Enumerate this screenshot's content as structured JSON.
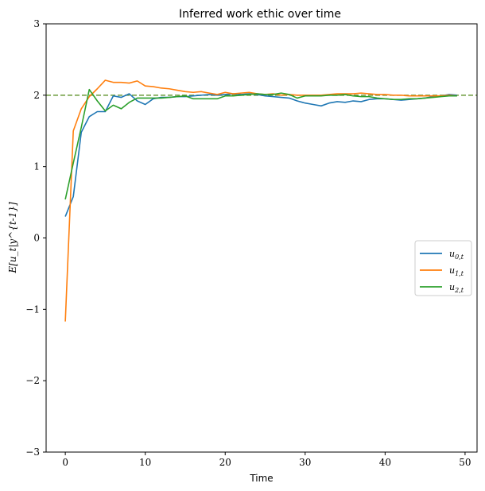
{
  "chart_data": {
    "type": "line",
    "title": "Inferred work ethic over time",
    "xlabel": "Time",
    "ylabel": "E[u_t|y^{t-1}]",
    "xlim": [
      -2.4,
      51.5
    ],
    "ylim": [
      -3,
      3
    ],
    "xticks": [
      0,
      10,
      20,
      30,
      40,
      50
    ],
    "yticks": [
      -3,
      -2,
      -1,
      0,
      1,
      2,
      3
    ],
    "ytick_labels": [
      "−3",
      "−2",
      "−1",
      "0",
      "1",
      "2",
      "3"
    ],
    "grid": false,
    "legend_position": "center-right",
    "reference_line": {
      "y": 2,
      "style": "dashed",
      "color": "#6a9a3a"
    },
    "x": [
      0,
      1,
      2,
      3,
      4,
      5,
      6,
      7,
      8,
      9,
      10,
      11,
      12,
      13,
      14,
      15,
      16,
      17,
      18,
      19,
      20,
      21,
      22,
      23,
      24,
      25,
      26,
      27,
      28,
      29,
      30,
      31,
      32,
      33,
      34,
      35,
      36,
      37,
      38,
      39,
      40,
      41,
      42,
      43,
      44,
      45,
      46,
      47,
      48,
      49
    ],
    "series": [
      {
        "name": "u_{0,t}",
        "legend_main": "u",
        "legend_sub": "0,t",
        "color": "#1f77b4",
        "values": [
          0.3,
          0.58,
          1.48,
          1.7,
          1.77,
          1.77,
          1.99,
          1.97,
          2.02,
          1.92,
          1.87,
          1.95,
          1.97,
          1.97,
          1.98,
          1.98,
          1.99,
          2.0,
          2.01,
          2.0,
          2.01,
          2.02,
          2.01,
          2.02,
          2.01,
          1.99,
          1.98,
          1.97,
          1.96,
          1.92,
          1.89,
          1.87,
          1.85,
          1.89,
          1.91,
          1.9,
          1.92,
          1.91,
          1.94,
          1.95,
          1.95,
          1.94,
          1.93,
          1.94,
          1.95,
          1.96,
          1.98,
          1.99,
          2.01,
          2.0
        ]
      },
      {
        "name": "u_{1,t}",
        "legend_main": "u",
        "legend_sub": "1,t",
        "color": "#ff7f0e",
        "values": [
          -1.17,
          1.5,
          1.81,
          1.98,
          2.09,
          2.21,
          2.18,
          2.18,
          2.17,
          2.2,
          2.13,
          2.12,
          2.1,
          2.09,
          2.07,
          2.05,
          2.04,
          2.05,
          2.03,
          2.01,
          2.04,
          2.02,
          2.03,
          2.04,
          2.02,
          2.01,
          2.02,
          2.0,
          2.01,
          2.0,
          2.0,
          2.0,
          2.0,
          2.01,
          2.02,
          2.02,
          2.02,
          2.03,
          2.02,
          2.01,
          2.01,
          2.0,
          2.0,
          1.99,
          1.99,
          1.99,
          1.99,
          1.99,
          2.0,
          1.99
        ]
      },
      {
        "name": "u_{2,t}",
        "legend_main": "u",
        "legend_sub": "2,t",
        "color": "#2ca02c",
        "values": [
          0.54,
          1.05,
          1.55,
          2.08,
          1.92,
          1.78,
          1.86,
          1.81,
          1.9,
          1.96,
          1.96,
          1.96,
          1.96,
          1.97,
          1.98,
          1.99,
          1.95,
          1.95,
          1.95,
          1.95,
          1.99,
          1.99,
          2.0,
          2.01,
          2.02,
          2.01,
          2.01,
          2.03,
          2.01,
          1.96,
          1.99,
          1.99,
          1.99,
          2.0,
          2.0,
          2.01,
          1.99,
          1.98,
          1.98,
          1.96,
          1.95,
          1.94,
          1.94,
          1.95,
          1.95,
          1.96,
          1.97,
          1.98,
          1.99,
          1.99
        ]
      }
    ]
  }
}
